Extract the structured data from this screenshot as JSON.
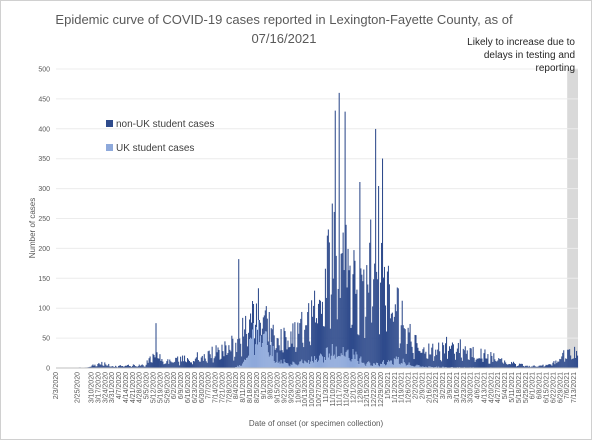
{
  "chart_data": {
    "type": "bar",
    "stacked": true,
    "title": "Epidemic curve of COVID-19 cases reported in Lexington-Fayette County, as of 07/16/2021",
    "title_lines": [
      "Epidemic curve of COVID-19 cases reported in Lexington-Fayette County, as of",
      "07/16/2021"
    ],
    "xlabel": "Date of onset (or specimen collection)",
    "ylabel": "Number of cases",
    "ylim": [
      0,
      500
    ],
    "yticks": [
      0,
      50,
      100,
      150,
      200,
      250,
      300,
      350,
      400,
      450,
      500
    ],
    "x_start": "2020-02-03",
    "x_end": "2021-07-16",
    "x_tick_labels": [
      "2/3/2020",
      "2/25/2020",
      "3/10/2020",
      "3/17/2020",
      "3/24/2020",
      "3/31/2020",
      "4/7/2020",
      "4/14/2020",
      "4/21/2020",
      "4/28/2020",
      "5/5/2020",
      "5/12/2020",
      "5/19/2020",
      "5/26/2020",
      "6/2/2020",
      "6/9/2020",
      "6/16/2020",
      "6/23/2020",
      "6/30/2020",
      "7/7/2020",
      "7/14/2020",
      "7/21/2020",
      "7/28/2020",
      "8/4/2020",
      "8/11/2020",
      "8/18/2020",
      "8/25/2020",
      "9/1/2020",
      "9/8/2020",
      "9/15/2020",
      "9/22/2020",
      "9/29/2020",
      "10/6/2020",
      "10/13/2020",
      "10/20/2020",
      "10/27/2020",
      "11/3/2020",
      "11/10/2020",
      "11/17/2020",
      "11/24/2020",
      "12/1/2020",
      "12/8/2020",
      "12/15/2020",
      "12/22/2020",
      "12/29/2020",
      "1/5/2021",
      "1/12/2021",
      "1/19/2021",
      "1/26/2021",
      "2/2/2021",
      "2/9/2021",
      "2/16/2021",
      "2/23/2021",
      "3/2/2021",
      "3/9/2021",
      "3/16/2021",
      "3/23/2021",
      "3/30/2021",
      "4/6/2021",
      "4/13/2021",
      "4/20/2021",
      "4/27/2021",
      "5/4/2021",
      "5/11/2021",
      "5/18/2021",
      "5/25/2021",
      "6/1/2021",
      "6/8/2021",
      "6/15/2021",
      "6/22/2021",
      "6/29/2021",
      "7/6/2021",
      "7/13/2021"
    ],
    "series": [
      {
        "name": "non-UK student cases",
        "color": "#2f4b8c",
        "trend": [
          [
            0,
            0
          ],
          [
            30,
            1
          ],
          [
            45,
            8
          ],
          [
            58,
            3
          ],
          [
            90,
            5
          ],
          [
            101,
            30
          ],
          [
            108,
            10
          ],
          [
            130,
            15
          ],
          [
            150,
            20
          ],
          [
            170,
            35
          ],
          [
            182,
            40
          ],
          [
            190,
            55
          ],
          [
            200,
            45
          ],
          [
            215,
            30
          ],
          [
            240,
            45
          ],
          [
            260,
            80
          ],
          [
            270,
            110
          ],
          [
            282,
            190
          ],
          [
            286,
            160
          ],
          [
            292,
            200
          ],
          [
            297,
            150
          ],
          [
            305,
            115
          ],
          [
            312,
            110
          ],
          [
            320,
            185
          ],
          [
            326,
            180
          ],
          [
            334,
            145
          ],
          [
            345,
            95
          ],
          [
            360,
            45
          ],
          [
            375,
            25
          ],
          [
            390,
            32
          ],
          [
            400,
            40
          ],
          [
            415,
            30
          ],
          [
            435,
            22
          ],
          [
            455,
            10
          ],
          [
            478,
            3
          ],
          [
            490,
            3
          ],
          [
            505,
            10
          ],
          [
            520,
            26
          ]
        ],
        "spikes": [
          [
            185,
            180
          ],
          [
            216,
            75
          ],
          [
            101,
            75
          ],
          [
            287,
            440
          ],
          [
            283,
            415
          ],
          [
            293,
            410
          ],
          [
            308,
            295
          ],
          [
            324,
            395
          ],
          [
            331,
            340
          ],
          [
            327,
            300
          ]
        ]
      },
      {
        "name": "UK student cases",
        "color": "#8ea9db",
        "trend": [
          [
            0,
            0
          ],
          [
            180,
            0
          ],
          [
            188,
            5
          ],
          [
            192,
            25
          ],
          [
            198,
            50
          ],
          [
            204,
            55
          ],
          [
            210,
            50
          ],
          [
            216,
            35
          ],
          [
            222,
            20
          ],
          [
            230,
            10
          ],
          [
            245,
            8
          ],
          [
            260,
            15
          ],
          [
            270,
            25
          ],
          [
            282,
            30
          ],
          [
            295,
            25
          ],
          [
            310,
            15
          ],
          [
            320,
            5
          ],
          [
            335,
            10
          ],
          [
            345,
            15
          ],
          [
            360,
            5
          ],
          [
            375,
            2
          ],
          [
            400,
            1
          ],
          [
            520,
            0
          ]
        ],
        "spikes": [
          [
            200,
            75
          ],
          [
            205,
            80
          ]
        ]
      }
    ],
    "highlight_band": {
      "from": "2021-07-06",
      "to": "2021-07-16",
      "color": "#d9d9d9"
    },
    "annotation": "Likely to increase due to delays in testing and reporting",
    "annotation_lines": [
      "Likely to increase due to",
      "delays in testing and",
      "reporting"
    ],
    "legend": [
      {
        "label": "non-UK student cases",
        "color": "#2f4b8c"
      },
      {
        "label": "UK student cases",
        "color": "#8ea9db"
      }
    ],
    "legend_position": "left"
  }
}
